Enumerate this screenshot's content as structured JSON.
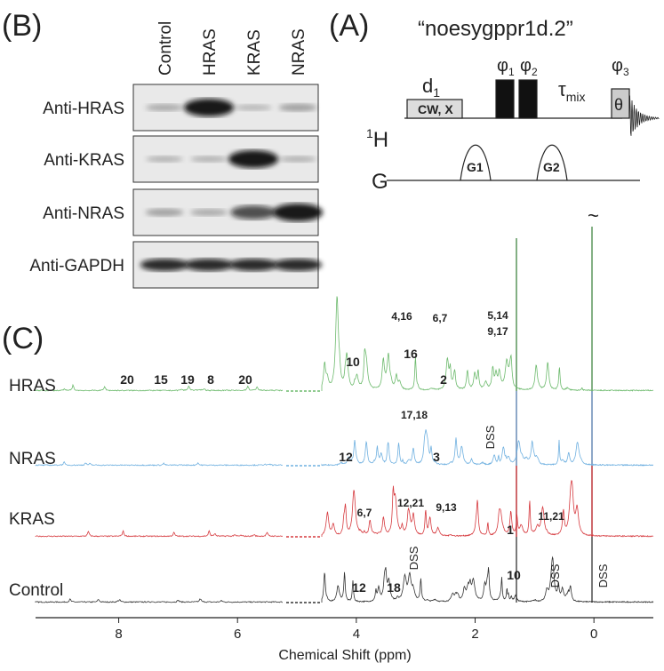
{
  "panel_b": {
    "label": "(B)",
    "lanes": [
      "Control",
      "HRAS",
      "KRAS",
      "NRAS"
    ],
    "rows": [
      "Anti-HRAS",
      "Anti-KRAS",
      "Anti-NRAS",
      "Anti-GAPDH"
    ]
  },
  "panel_a": {
    "label": "(A)",
    "title": "“noesygppr1d.2”",
    "d": "d",
    "d_sub": "1",
    "cw": "CW, X",
    "phi": "φ",
    "phi1": "1",
    "phi2": "2",
    "phi3": "3",
    "tau": "τ",
    "tau_sub": "mix",
    "theta": "θ",
    "h_sup": "1",
    "h": "H",
    "g": "G",
    "g1": "G1",
    "g2": "G2"
  },
  "panel_c": {
    "label": "(C)",
    "traces": [
      "HRAS",
      "NRAS",
      "KRAS",
      "Control"
    ],
    "x_axis_label": "Chemical Shift (ppm)",
    "xlim": [
      9.4,
      -1.0
    ],
    "xticks": [
      8,
      6,
      4,
      2,
      0
    ],
    "tilde": "~",
    "hras_labels": [
      "20",
      "15",
      "19",
      "8",
      "20",
      "10",
      "16",
      "4,16",
      "6,7",
      "2",
      "5,14",
      "9,17"
    ],
    "nras_labels": [
      "12",
      "17,18",
      "3",
      "DSS"
    ],
    "kras_labels": [
      "6,7",
      "12,21",
      "9,13",
      "1",
      "11,21"
    ],
    "control_labels": [
      "12",
      "18",
      "DSS",
      "10",
      "DSS",
      "DSS"
    ]
  }
}
